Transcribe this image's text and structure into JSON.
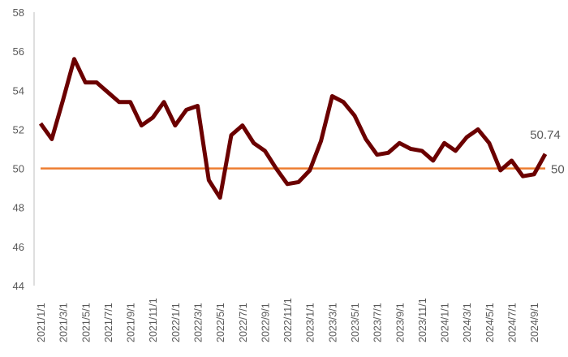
{
  "chart_data": {
    "type": "line",
    "title": "",
    "xlabel": "",
    "ylabel": "",
    "ylim": [
      44,
      58
    ],
    "yticks": [
      44,
      46,
      48,
      50,
      52,
      54,
      56,
      58
    ],
    "grid": false,
    "x": [
      "2021/1/1",
      "2021/2/1",
      "2021/3/1",
      "2021/4/1",
      "2021/5/1",
      "2021/6/1",
      "2021/7/1",
      "2021/8/1",
      "2021/9/1",
      "2021/10/1",
      "2021/11/1",
      "2021/12/1",
      "2022/1/1",
      "2022/2/1",
      "2022/3/1",
      "2022/4/1",
      "2022/5/1",
      "2022/6/1",
      "2022/7/1",
      "2022/8/1",
      "2022/9/1",
      "2022/10/1",
      "2022/11/1",
      "2022/12/1",
      "2023/1/1",
      "2023/2/1",
      "2023/3/1",
      "2023/4/1",
      "2023/5/1",
      "2023/6/1",
      "2023/7/1",
      "2023/8/1",
      "2023/9/1",
      "2023/10/1",
      "2023/11/1",
      "2023/12/1",
      "2024/1/1",
      "2024/2/1",
      "2024/3/1",
      "2024/4/1",
      "2024/5/1",
      "2024/6/1",
      "2024/7/1",
      "2024/8/1",
      "2024/9/1",
      "2024/10/1"
    ],
    "xtick_labels": [
      "2021/1/1",
      "2021/3/1",
      "2021/5/1",
      "2021/7/1",
      "2021/9/1",
      "2021/11/1",
      "2022/1/1",
      "2022/3/1",
      "2022/5/1",
      "2022/7/1",
      "2022/9/1",
      "2022/11/1",
      "2023/1/1",
      "2023/3/1",
      "2023/5/1",
      "2023/7/1",
      "2023/9/1",
      "2023/11/1",
      "2024/1/1",
      "2024/3/1",
      "2024/5/1",
      "2024/7/1",
      "2024/9/1"
    ],
    "series": [
      {
        "values": [
          52.3,
          51.5,
          53.5,
          55.6,
          54.4,
          54.4,
          53.9,
          53.4,
          53.4,
          52.2,
          52.6,
          53.4,
          52.2,
          53.0,
          53.2,
          49.4,
          48.5,
          51.7,
          52.2,
          51.3,
          50.9,
          50.0,
          49.2,
          49.3,
          49.9,
          51.4,
          53.7,
          53.4,
          52.7,
          51.5,
          50.7,
          50.8,
          51.3,
          51.0,
          50.9,
          50.4,
          51.3,
          50.9,
          51.6,
          52.0,
          51.3,
          49.9,
          50.4,
          49.6,
          49.7,
          50.74
        ],
        "color": "#6b0000"
      },
      {
        "values": "constant",
        "level": 50,
        "color": "#ed7d31"
      }
    ],
    "annotations": {
      "last_value": "50.74",
      "reference": "50"
    }
  }
}
